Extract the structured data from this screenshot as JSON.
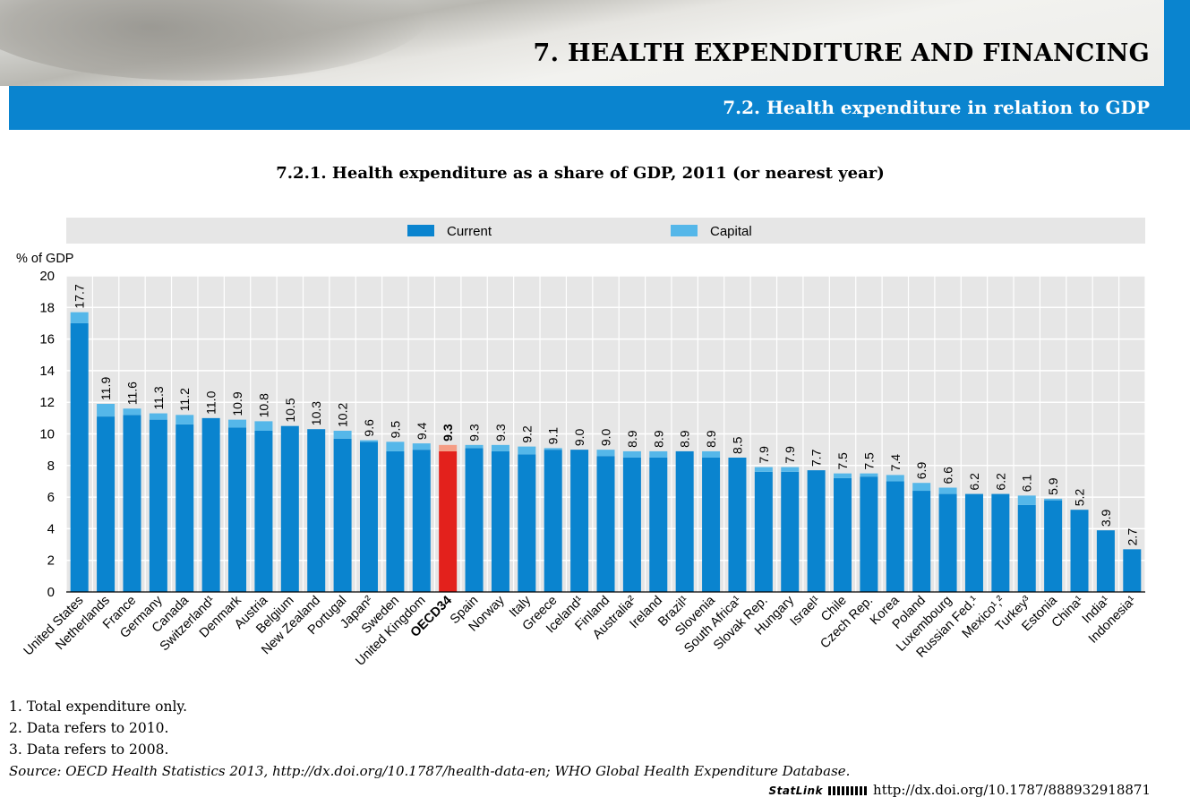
{
  "header": {
    "chapter_title": "7. HEALTH EXPENDITURE AND FINANCING",
    "section_title": "7.2. Health expenditure in relation to GDP"
  },
  "colors": {
    "current": "#0a84cf",
    "capital": "#55b7e9",
    "oecd_current": "#e3211c",
    "oecd_capital": "#f59d85",
    "plot_bg": "#e6e6e6",
    "legend_bg": "#e6e6e6"
  },
  "chart_data": {
    "type": "bar",
    "stacked": true,
    "title": "7.2.1.  Health expenditure as a share of GDP, 2011 (or nearest year)",
    "ylabel": "% of GDP",
    "ylim": [
      0,
      20
    ],
    "yticks": [
      0,
      2,
      4,
      6,
      8,
      10,
      12,
      14,
      16,
      18,
      20
    ],
    "grid": true,
    "legend_position": "top",
    "highlight": "OECD34",
    "categories": [
      "United States",
      "Netherlands",
      "France",
      "Germany",
      "Canada",
      "Switzerland¹",
      "Denmark",
      "Austria",
      "Belgium",
      "New Zealand",
      "Portugal",
      "Japan²",
      "Sweden",
      "United Kingdom",
      "OECD34",
      "Spain",
      "Norway",
      "Italy",
      "Greece",
      "Iceland¹",
      "Finland",
      "Australia²",
      "Ireland",
      "Brazil¹",
      "Slovenia",
      "South Africa¹",
      "Slovak Rep.",
      "Hungary",
      "Israel¹",
      "Chile",
      "Czech Rep.",
      "Korea",
      "Poland",
      "Luxembourg",
      "Russian Fed.¹",
      "Mexico¹,²",
      "Turkey³",
      "Estonia",
      "China¹",
      "India¹",
      "Indonesia¹"
    ],
    "totals_labels": [
      "17.7",
      "11.9",
      "11.6",
      "11.3",
      "11.2",
      "11.0",
      "10.9",
      "10.8",
      "10.5",
      "10.3",
      "10.2",
      "9.6",
      "9.5",
      "9.4",
      "9.3",
      "9.3",
      "9.3",
      "9.2",
      "9.1",
      "9.0",
      "9.0",
      "8.9",
      "8.9",
      "8.9",
      "8.9",
      "8.5",
      "7.9",
      "7.9",
      "7.7",
      "7.5",
      "7.5",
      "7.4",
      "6.9",
      "6.6",
      "6.2",
      "6.2",
      "6.1",
      "5.9",
      "5.2",
      "3.9",
      "2.7"
    ],
    "series": [
      {
        "name": "Current",
        "values": [
          17.0,
          11.1,
          11.2,
          10.9,
          10.6,
          11.0,
          10.4,
          10.2,
          10.5,
          10.3,
          9.7,
          9.5,
          8.9,
          9.0,
          8.9,
          9.1,
          8.9,
          8.7,
          9.0,
          9.0,
          8.6,
          8.5,
          8.5,
          8.9,
          8.5,
          8.5,
          7.6,
          7.6,
          7.7,
          7.2,
          7.3,
          7.0,
          6.4,
          6.2,
          6.2,
          6.2,
          5.5,
          5.8,
          5.2,
          3.9,
          2.7
        ]
      },
      {
        "name": "Capital",
        "values": [
          0.7,
          0.8,
          0.4,
          0.4,
          0.6,
          0.0,
          0.5,
          0.6,
          0.0,
          0.0,
          0.5,
          0.1,
          0.6,
          0.4,
          0.4,
          0.2,
          0.4,
          0.5,
          0.1,
          0.0,
          0.4,
          0.4,
          0.4,
          0.0,
          0.4,
          0.0,
          0.3,
          0.3,
          0.0,
          0.3,
          0.2,
          0.4,
          0.5,
          0.4,
          0.0,
          0.0,
          0.6,
          0.1,
          0.0,
          0.0,
          0.0
        ]
      }
    ]
  },
  "notes": [
    "1.   Total expenditure only.",
    "2.   Data refers to 2010.",
    "3.   Data refers to 2008."
  ],
  "source": "Source:  OECD Health Statistics 2013, http://dx.doi.org/10.1787/health-data-en; WHO Global Health Expenditure Database.",
  "statlink": {
    "label": "StatLink",
    "url": "http://dx.doi.org/10.1787/888932918871"
  }
}
